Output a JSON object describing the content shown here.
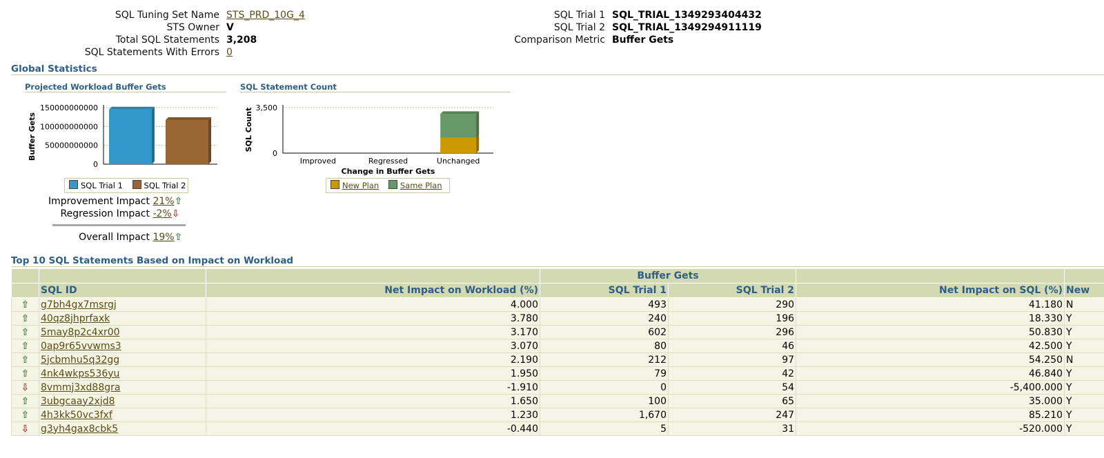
{
  "summary": {
    "left": [
      {
        "label": "SQL Tuning Set Name",
        "value": "STS_​​PRD_10G_4",
        "link": true
      },
      {
        "label": "STS Owner",
        "value": "V​",
        "bold": true
      },
      {
        "label": "Total SQL Statements",
        "value": "3,208",
        "bold": true
      },
      {
        "label": "SQL Statements With Errors",
        "value": "0",
        "link": true
      }
    ],
    "right": [
      {
        "label": "SQL Trial 1",
        "value": "SQL_TRIAL_1349293404432"
      },
      {
        "label": "SQL Trial 2",
        "value": "SQL_TRIAL_1349294911119"
      },
      {
        "label": "Comparison Metric",
        "value": "Buffer Gets"
      }
    ]
  },
  "global_stats_title": "Global Statistics",
  "chart_data": [
    {
      "type": "bar",
      "title": "Projected Workload Buffer Gets",
      "ylabel": "Buffer Gets",
      "xlabel": "",
      "ylim": [
        0,
        150000000000
      ],
      "yticks": [
        "150000000000",
        "100000000000",
        "50000000000",
        "0"
      ],
      "categories": [
        "SQL Trial 1",
        "SQL Trial 2"
      ],
      "values": [
        145000000000,
        117000000000
      ],
      "colors": [
        "#3399cc",
        "#996633"
      ],
      "legend": [
        "SQL Trial 1",
        "SQL Trial 2"
      ]
    },
    {
      "type": "bar",
      "stacked": true,
      "title": "SQL Statement Count",
      "ylabel": "SQL Count",
      "xlabel": "Change in Buffer Gets",
      "ylim": [
        0,
        3500
      ],
      "yticks": [
        "3,500",
        "0"
      ],
      "categories": [
        "Improved",
        "Regressed",
        "Unchanged"
      ],
      "series": [
        {
          "name": "New Plan",
          "color": "#cc9900",
          "values": [
            0,
            0,
            1200
          ]
        },
        {
          "name": "Same Plan",
          "color": "#669966",
          "values": [
            0,
            0,
            1800
          ]
        }
      ]
    }
  ],
  "impacts": {
    "improvement": {
      "label": "Improvement Impact",
      "value": "21%",
      "arrow": "⇧"
    },
    "regression": {
      "label": "Regression Impact",
      "value": "-2%",
      "arrow": "⇩"
    },
    "overall": {
      "label": "Overall Impact",
      "value": "19%",
      "arrow": "⇧"
    }
  },
  "top10": {
    "title": "Top 10 SQL Statements Based on Impact on Workload",
    "group_header": "Buffer Gets",
    "columns": [
      "SQL ID",
      "Net Impact on Workload (%)",
      "SQL Trial 1",
      "SQL Trial 2",
      "Net Impact on SQL (%)",
      "New"
    ],
    "rows": [
      {
        "dir": "up",
        "arrow": "⇧",
        "id": "g7bh4gx7msrgj",
        "workload": "4.000",
        "t1": "493",
        "t2": "290",
        "sql": "41.180",
        "new": "N"
      },
      {
        "dir": "up",
        "arrow": "⇧",
        "id": "40qz8jhprfaxk",
        "workload": "3.780",
        "t1": "240",
        "t2": "196",
        "sql": "18.330",
        "new": "Y"
      },
      {
        "dir": "up",
        "arrow": "⇧",
        "id": "5may8p2c4xr00",
        "workload": "3.170",
        "t1": "602",
        "t2": "296",
        "sql": "50.830",
        "new": "Y"
      },
      {
        "dir": "up",
        "arrow": "⇧",
        "id": "0ap9r65vvwms3",
        "workload": "3.070",
        "t1": "80",
        "t2": "46",
        "sql": "42.500",
        "new": "Y"
      },
      {
        "dir": "up",
        "arrow": "⇧",
        "id": "5jcbmhu5q32gg",
        "workload": "2.190",
        "t1": "212",
        "t2": "97",
        "sql": "54.250",
        "new": "N"
      },
      {
        "dir": "up",
        "arrow": "⇧",
        "id": "4nk4wkps536yu",
        "workload": "1.950",
        "t1": "79",
        "t2": "42",
        "sql": "46.840",
        "new": "Y"
      },
      {
        "dir": "down",
        "arrow": "⇩",
        "id": "8vmmj3xd88gra",
        "workload": "-1.910",
        "t1": "0",
        "t2": "54",
        "sql": "-5,400.000",
        "new": "Y"
      },
      {
        "dir": "up",
        "arrow": "⇧",
        "id": "3ubgcaay2xjd8",
        "workload": "1.650",
        "t1": "100",
        "t2": "65",
        "sql": "35.000",
        "new": "Y"
      },
      {
        "dir": "up",
        "arrow": "⇧",
        "id": "4h3kk50vc3fxf",
        "workload": "1.230",
        "t1": "1,670",
        "t2": "247",
        "sql": "85.210",
        "new": "Y"
      },
      {
        "dir": "down",
        "arrow": "⇩",
        "id": "g3yh4gax8cbk5",
        "workload": "-0.440",
        "t1": "5",
        "t2": "31",
        "sql": "-520.000",
        "new": "Y"
      }
    ]
  },
  "colors": {
    "header_bg": "#d3d9b0",
    "row_bg": "#f5f5e6",
    "title": "#2d5e86",
    "link": "#5b4a12",
    "up": "#3a8a3a",
    "down": "#c0392b"
  }
}
